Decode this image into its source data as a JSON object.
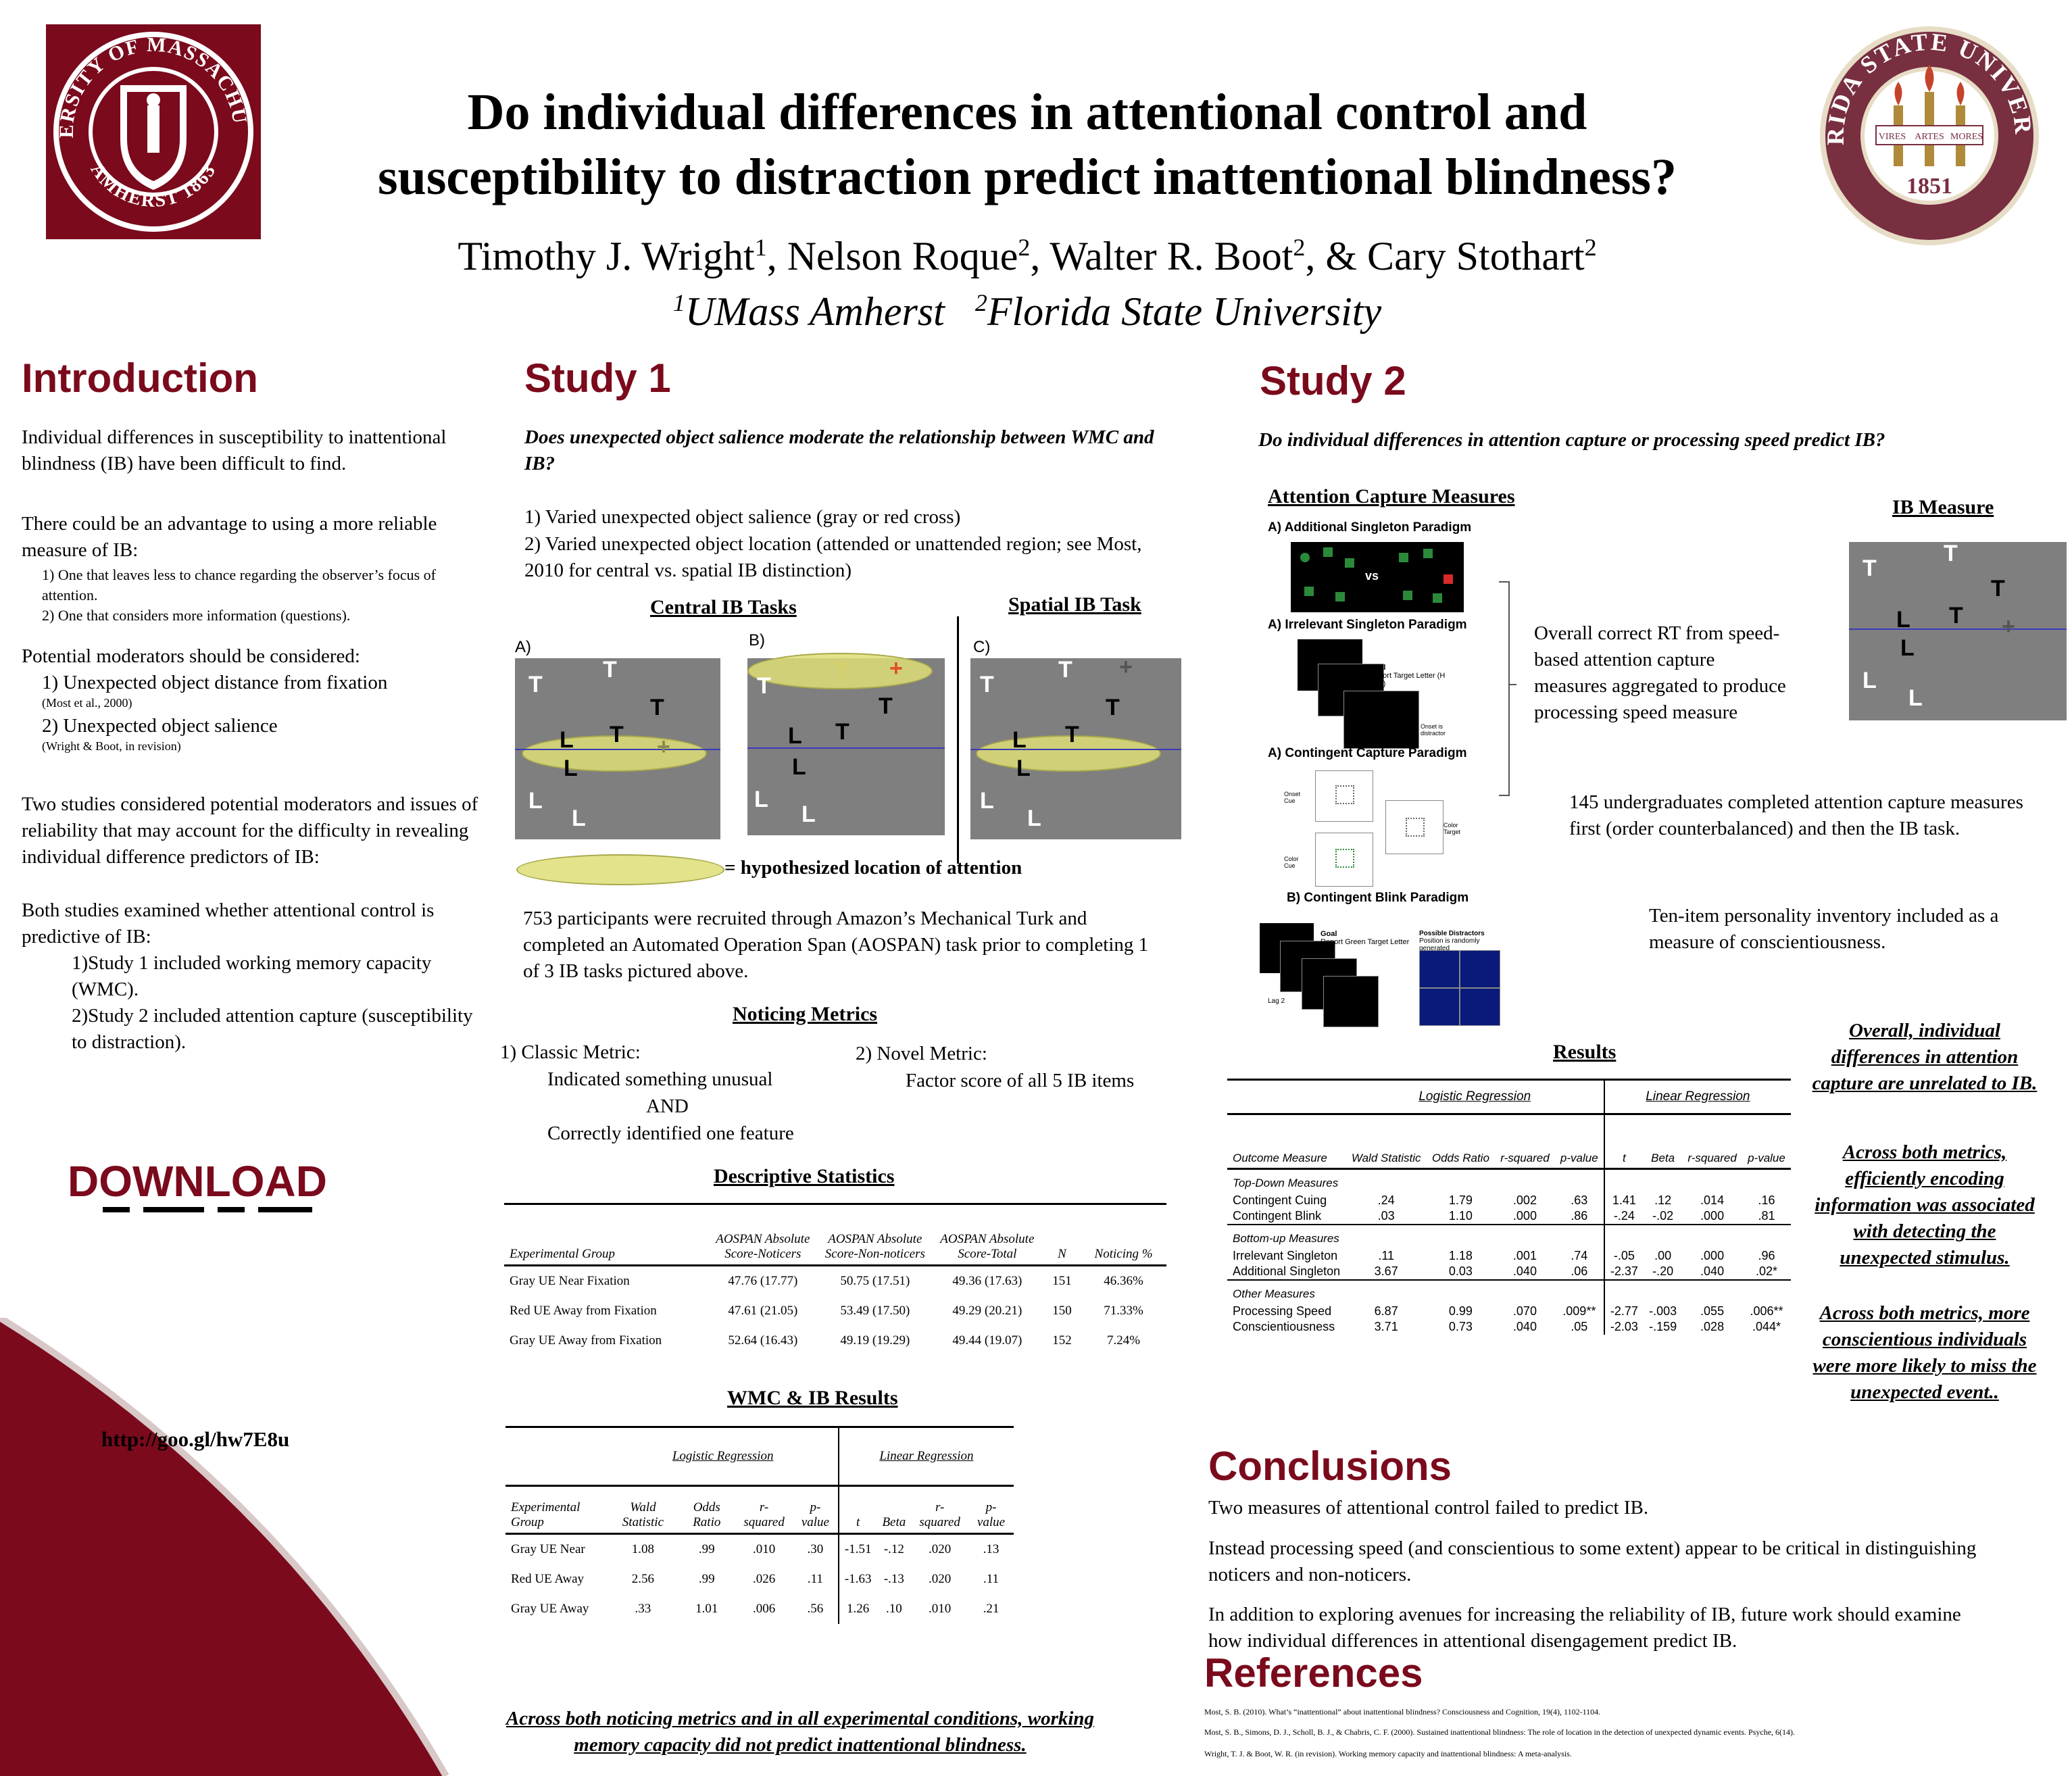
{
  "header": {
    "title_line1": "Do individual differences in attentional control and",
    "title_line2": "susceptibility to distraction predict inattentional blindness?",
    "authors": "Timothy J. Wright",
    "authors_sup1": "1",
    "authors_2": ", Nelson Roque",
    "authors_sup2": "2",
    "authors_3": ", Walter R. Boot",
    "authors_sup3": "2",
    "authors_4": ", & Cary Stothart",
    "authors_sup4": "2",
    "aff_sup1": "1",
    "aff1": "UMass Amherst",
    "aff_sup2": "2",
    "aff2": "Florida State University"
  },
  "logo_left": {
    "top": "UNIVERSITY OF MASSACHUSETTS",
    "bottom": "AMHERST 1863",
    "color": "#7a0a1c"
  },
  "logo_right": {
    "top": "FLORIDA STATE UNIVERSITY",
    "year": "1851",
    "w1": "VIRES",
    "w2": "ARTES",
    "w3": "MORES",
    "color": "#782f40"
  },
  "intro": {
    "heading": "Introduction",
    "p1": "Individual differences in susceptibility to inattentional blindness (IB) have been difficult to find.",
    "p2": "There could be an advantage to using a more reliable measure of IB:",
    "p2a": "1) One that leaves less to chance regarding the observer’s focus of attention.",
    "p2b": "2) One that considers more information (questions).",
    "p3": "Potential moderators should be considered:",
    "m1": "1) Unexpected object distance from fixation",
    "m1c": "(Most et al., 2000)",
    "m2": "2) Unexpected object salience",
    "m2c": "(Wright & Boot, in revision)",
    "p4": "Two studies considered potential moderators and issues of reliability that may account for the difficulty in revealing individual difference predictors of IB:",
    "p5": "Both studies examined whether attentional control is predictive of IB:",
    "p5a": "1)Study 1 included working memory capacity (WMC).",
    "p5b": "2)Study 2 included attention capture (susceptibility to distraction).",
    "download": "DOWNLOAD",
    "url": "http://goo.gl/hw7E8u"
  },
  "study1": {
    "heading": "Study 1",
    "question": "Does unexpected object salience moderate the relationship between WMC and IB?",
    "i1": "1) Varied unexpected object salience (gray or red cross)",
    "i2": "2) Varied unexpected object location (attended or unattended region; see Most, 2010 for central vs. spatial IB distinction)",
    "central_label": "Central IB Tasks",
    "spatial_label": "Spatial IB Task",
    "panel_a": "A)",
    "panel_b": "B)",
    "panel_c": "C)",
    "legend": "= hypothesized location of attention",
    "participants": "753 participants were recruited through Amazon’s Mechanical Turk and completed an Automated Operation Span (AOSPAN) task prior to completing 1 of 3 IB tasks pictured above.",
    "metrics_heading": "Noticing Metrics",
    "classic": "1) Classic Metric:",
    "classic1": "Indicated something unusual",
    "classic2": "AND",
    "classic3": "Correctly identified one feature",
    "novel": "2) Novel Metric:",
    "novel1": "Factor score of all 5 IB items",
    "desc_heading": "Descriptive Statistics",
    "desc_cols": [
      "Experimental Group",
      "AOSPAN Absolute Score-Noticers",
      "AOSPAN Absolute Score-Non-noticers",
      "AOSPAN Absolute Score-Total",
      "N",
      "Noticing %"
    ],
    "desc_rows": [
      [
        "Gray UE Near Fixation",
        "47.76 (17.77)",
        "50.75 (17.51)",
        "49.36 (17.63)",
        "151",
        "46.36%"
      ],
      [
        "Red UE Away from Fixation",
        "47.61 (21.05)",
        "53.49 (17.50)",
        "49.29 (20.21)",
        "150",
        "71.33%"
      ],
      [
        "Gray UE Away from Fixation",
        "52.64 (16.43)",
        "49.19 (19.29)",
        "49.44 (19.07)",
        "152",
        "7.24%"
      ]
    ],
    "wmc_heading": "WMC & IB Results",
    "wmc_log": "Logistic Regression",
    "wmc_lin": "Linear Regression",
    "wmc_cols": [
      "Experimental Group",
      "Wald Statistic",
      "Odds Ratio",
      "r-squared",
      "p-value",
      "t",
      "Beta",
      "r-squared",
      "p-value"
    ],
    "wmc_rows": [
      [
        "Gray UE Near",
        "1.08",
        ".99",
        ".010",
        ".30",
        "-1.51",
        "-.12",
        ".020",
        ".13"
      ],
      [
        "Red UE Away",
        "2.56",
        ".99",
        ".026",
        ".11",
        "-1.63",
        "-.13",
        ".020",
        ".11"
      ],
      [
        "Gray UE Away",
        ".33",
        "1.01",
        ".006",
        ".56",
        "1.26",
        ".10",
        ".010",
        ".21"
      ]
    ],
    "conclusion": "Across both noticing metrics and in all experimental conditions, working memory capacity did not predict inattentional blindness."
  },
  "study2": {
    "heading": "Study 2",
    "question": "Do individual differences in attention capture or processing speed predict IB?",
    "acm": "Attention Capture Measures",
    "p1": "A)  Additional Singleton Paradigm",
    "p2": "A)  Irrelevant Singleton Paradigm",
    "p3": "A)  Contingent Capture Paradigm",
    "p4": "B)  Contingent Blink Paradigm",
    "vs": "vs",
    "goal": "Goal",
    "goal_desc": "Report Target Letter (H or U)",
    "onset": "Onset is distractor",
    "onset_cue": "Onset Cue",
    "color_cue": "Color Cue",
    "color_target": "Color Target",
    "goal2_desc": "Report Green Target Letter",
    "possible": "Possible Distractors",
    "possible2": "Position is randomly generated",
    "lag": "Lag 2",
    "ib_measure": "IB Measure",
    "rt_text": "Overall correct RT from speed-based attention capture measures aggregated to produce processing speed measure",
    "undergrads": "145 undergraduates completed attention capture measures first (order counterbalanced) and then the IB task.",
    "personality": "Ten-item personality inventory included as a measure of conscientiousness.",
    "results_heading": "Results",
    "res_log": "Logistic Regression",
    "res_lin": "Linear Regression",
    "res_cols": [
      "Outcome Measure",
      "Wald Statistic",
      "Odds Ratio",
      "r-squared",
      "p-value",
      "t",
      "Beta",
      "r-squared",
      "p-value"
    ],
    "g1": "Top-Down Measures",
    "g1_rows": [
      [
        "Contingent Cuing",
        ".24",
        "1.79",
        ".002",
        ".63",
        "1.41",
        ".12",
        ".014",
        ".16"
      ],
      [
        "Contingent Blink",
        ".03",
        "1.10",
        ".000",
        ".86",
        "-.24",
        "-.02",
        ".000",
        ".81"
      ]
    ],
    "g2": "Bottom-up Measures",
    "g2_rows": [
      [
        "Irrelevant Singleton",
        ".11",
        "1.18",
        ".001",
        ".74",
        "-.05",
        ".00",
        ".000",
        ".96"
      ],
      [
        "Additional Singleton",
        "3.67",
        "0.03",
        ".040",
        ".06",
        "-2.37",
        "-.20",
        ".040",
        ".02*"
      ]
    ],
    "g3": "Other Measures",
    "g3_rows": [
      [
        "Processing Speed",
        "6.87",
        "0.99",
        ".070",
        ".009**",
        "-2.77",
        "-.003",
        ".055",
        ".006**"
      ],
      [
        "Conscientiousness",
        "3.71",
        "0.73",
        ".040",
        ".05",
        "-2.03",
        "-.159",
        ".028",
        ".044*"
      ]
    ],
    "side1": "Overall, individual differences in attention capture are unrelated to IB.",
    "side2": "Across both metrics, efficiently encoding information was associated with detecting the unexpected stimulus.",
    "side3": "Across both metrics, more conscientious individuals were more likely to miss the unexpected event.."
  },
  "conclusions": {
    "heading": "Conclusions",
    "c1": "Two measures of attentional control failed to predict IB.",
    "c2": "Instead processing speed (and conscientious to some extent) appear to be critical in distinguishing noticers and non-noticers.",
    "c3": "In addition to exploring avenues for increasing the reliability of IB, future work should examine how individual differences in attentional disengagement predict IB."
  },
  "references": {
    "heading": "References",
    "r1": "Most, S. B. (2010). What’s “inattentional” about inattentional blindness? Consciousness and Cognition, 19(4), 1102-1104.",
    "r2": "Most, S. B., Simons, D. J., Scholl, B. J., & Chabris, C. F. (2000). Sustained inattentional blindness: The role of location in the detection of unexpected dynamic events. Psyche, 6(14).",
    "r3": "Wright, T. J. & Boot, W. R. (in revision). Working memory capacity and inattentional blindness: A meta-analysis."
  }
}
